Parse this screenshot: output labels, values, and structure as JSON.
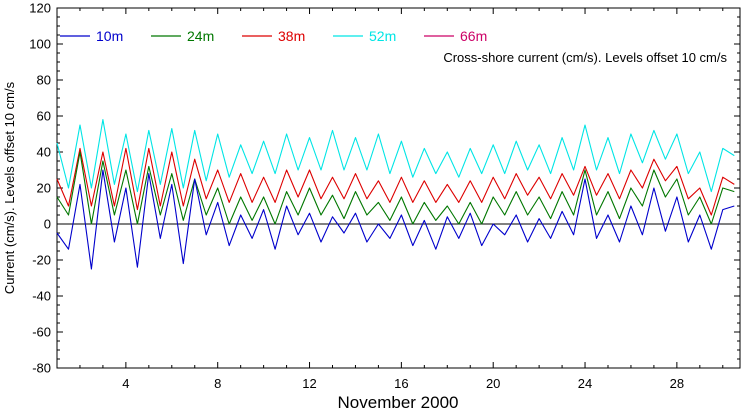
{
  "chart_data": {
    "type": "line",
    "title": "",
    "xlabel": "November 2000",
    "ylabel": "Current (cm/s). Levels offset 10 cm/s",
    "annotation": "Cross-shore current (cm/s). Levels offset 10 cm/s",
    "xlim": [
      1,
      30.75
    ],
    "ylim": [
      -80,
      120
    ],
    "x_ticks": [
      4,
      8,
      12,
      16,
      20,
      24,
      28
    ],
    "y_ticks": [
      -80,
      -60,
      -40,
      -20,
      0,
      20,
      40,
      60,
      80,
      100,
      120
    ],
    "zero_line": 0,
    "legend_position": "top-left",
    "series": [
      {
        "name": "10m",
        "color": "#0000cc",
        "x": [
          1,
          1.5,
          2,
          2.5,
          3,
          3.5,
          4,
          4.5,
          5,
          5.5,
          6,
          6.5,
          7,
          7.5,
          8,
          8.5,
          9,
          9.5,
          10,
          10.5,
          11,
          11.5,
          12,
          12.5,
          13,
          13.5,
          14,
          14.5,
          15,
          15.5,
          16,
          16.5,
          17,
          17.5,
          18,
          18.5,
          19,
          19.5,
          20,
          20.5,
          21,
          21.5,
          22,
          22.5,
          23,
          23.5,
          24,
          24.5,
          25,
          25.5,
          26,
          26.5,
          27,
          27.5,
          28,
          28.5,
          29,
          29.5,
          30,
          30.5
        ],
        "values": [
          -5,
          -14,
          22,
          -25,
          30,
          -10,
          20,
          -24,
          28,
          -8,
          22,
          -22,
          25,
          -6,
          12,
          -12,
          5,
          -8,
          8,
          -14,
          10,
          -6,
          6,
          -10,
          4,
          -5,
          6,
          -10,
          0,
          -8,
          5,
          -12,
          2,
          -14,
          4,
          -8,
          6,
          -12,
          0,
          -6,
          5,
          -10,
          3,
          -8,
          7,
          -6,
          25,
          -8,
          5,
          -10,
          10,
          -6,
          20,
          -4,
          15,
          -10,
          5,
          -14,
          8,
          10
        ]
      },
      {
        "name": "24m",
        "color": "#007700",
        "x": [
          1,
          1.5,
          2,
          2.5,
          3,
          3.5,
          4,
          4.5,
          5,
          5.5,
          6,
          6.5,
          7,
          7.5,
          8,
          8.5,
          9,
          9.5,
          10,
          10.5,
          11,
          11.5,
          12,
          12.5,
          13,
          13.5,
          14,
          14.5,
          15,
          15.5,
          16,
          16.5,
          17,
          17.5,
          18,
          18.5,
          19,
          19.5,
          20,
          20.5,
          21,
          21.5,
          22,
          22.5,
          23,
          23.5,
          24,
          24.5,
          25,
          25.5,
          26,
          26.5,
          27,
          27.5,
          28,
          28.5,
          29,
          29.5,
          30,
          30.5
        ],
        "values": [
          15,
          5,
          40,
          0,
          35,
          5,
          30,
          0,
          32,
          5,
          28,
          2,
          25,
          5,
          20,
          0,
          15,
          2,
          15,
          0,
          18,
          5,
          20,
          5,
          16,
          3,
          18,
          5,
          12,
          2,
          15,
          0,
          12,
          2,
          10,
          0,
          12,
          0,
          15,
          5,
          18,
          5,
          15,
          3,
          18,
          5,
          30,
          5,
          18,
          3,
          20,
          10,
          30,
          15,
          25,
          5,
          15,
          0,
          20,
          18
        ]
      },
      {
        "name": "38m",
        "color": "#dd0000",
        "x": [
          1,
          1.5,
          2,
          2.5,
          3,
          3.5,
          4,
          4.5,
          5,
          5.5,
          6,
          6.5,
          7,
          7.5,
          8,
          8.5,
          9,
          9.5,
          10,
          10.5,
          11,
          11.5,
          12,
          12.5,
          13,
          13.5,
          14,
          14.5,
          15,
          15.5,
          16,
          16.5,
          17,
          17.5,
          18,
          18.5,
          19,
          19.5,
          20,
          20.5,
          21,
          21.5,
          22,
          22.5,
          23,
          23.5,
          24,
          24.5,
          25,
          25.5,
          26,
          26.5,
          27,
          27.5,
          28,
          28.5,
          29,
          29.5,
          30,
          30.5
        ],
        "values": [
          25,
          10,
          42,
          10,
          40,
          10,
          42,
          8,
          42,
          10,
          40,
          10,
          36,
          14,
          30,
          12,
          28,
          12,
          26,
          12,
          30,
          15,
          30,
          14,
          26,
          14,
          28,
          14,
          24,
          12,
          26,
          12,
          24,
          12,
          22,
          12,
          24,
          12,
          26,
          14,
          28,
          16,
          26,
          14,
          28,
          16,
          32,
          16,
          28,
          14,
          30,
          20,
          36,
          24,
          32,
          14,
          20,
          5,
          26,
          22
        ]
      },
      {
        "name": "52m",
        "color": "#00e5e5",
        "x": [
          1,
          1.5,
          2,
          2.5,
          3,
          3.5,
          4,
          4.5,
          5,
          5.5,
          6,
          6.5,
          7,
          7.5,
          8,
          8.5,
          9,
          9.5,
          10,
          10.5,
          11,
          11.5,
          12,
          12.5,
          13,
          13.5,
          14,
          14.5,
          15,
          15.5,
          16,
          16.5,
          17,
          17.5,
          18,
          18.5,
          19,
          19.5,
          20,
          20.5,
          21,
          21.5,
          22,
          22.5,
          23,
          23.5,
          24,
          24.5,
          25,
          25.5,
          26,
          26.5,
          27,
          27.5,
          28,
          28.5,
          29,
          29.5,
          30,
          30.5
        ],
        "values": [
          45,
          20,
          55,
          20,
          58,
          22,
          50,
          18,
          52,
          22,
          53,
          20,
          52,
          24,
          50,
          26,
          44,
          28,
          46,
          28,
          50,
          30,
          48,
          30,
          52,
          30,
          48,
          30,
          50,
          28,
          46,
          26,
          42,
          28,
          40,
          26,
          42,
          28,
          44,
          28,
          46,
          30,
          44,
          28,
          48,
          30,
          55,
          30,
          48,
          28,
          50,
          34,
          52,
          36,
          50,
          28,
          40,
          18,
          42,
          38
        ]
      },
      {
        "name": "66m",
        "color": "#cc0066",
        "x": [],
        "values": []
      }
    ]
  }
}
